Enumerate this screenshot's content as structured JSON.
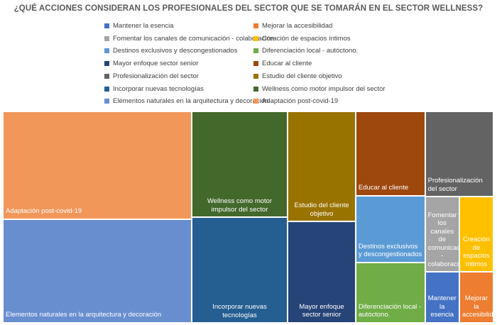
{
  "chart_data": {
    "type": "treemap",
    "title": "¿QUÉ ACCIONES CONSIDERAN LOS PROFESIONALES DEL SECTOR QUE SE TOMARÁN EN EL SECTOR WELLNESS?",
    "legend_position": "top",
    "legend": [
      {
        "name": "Mantener la esencia",
        "color": "#4472c4"
      },
      {
        "name": "Mejorar la accesibilidad",
        "color": "#ed7d31"
      },
      {
        "name": "Fomentar los canales de comunicación - colaboración",
        "color": "#a5a5a5"
      },
      {
        "name": "Creación de espacios íntimos",
        "color": "#ffc000"
      },
      {
        "name": "Destinos exclusivos y descongestionados",
        "color": "#5b9bd5"
      },
      {
        "name": "Diferenciación local - autóctono.",
        "color": "#70ad47"
      },
      {
        "name": "Mayor enfoque sector senior",
        "color": "#264478"
      },
      {
        "name": "Educar al cliente",
        "color": "#9e480e"
      },
      {
        "name": "Profesionalización del sector",
        "color": "#636363"
      },
      {
        "name": "Estudio del cliente objetivo",
        "color": "#997300"
      },
      {
        "name": "Incorporar nuevas tecnologías",
        "color": "#255e91"
      },
      {
        "name": "Wellness como motor impulsor del sector",
        "color": "#43682b"
      },
      {
        "name": "Elementos naturales en la arquitectura y decoración",
        "color": "#698ed0"
      },
      {
        "name": "Adaptación post-covid-19",
        "color": "#f1975a"
      }
    ],
    "items": [
      {
        "label": "Adaptación post-covid-19",
        "value": 19.8,
        "color": "#f1975a"
      },
      {
        "label": "Elementos naturales en la arquitectura y decoración",
        "value": 19.1,
        "color": "#698ed0"
      },
      {
        "label": "Wellness como motor impulsor del sector",
        "value": 9.9,
        "color": "#43682b"
      },
      {
        "label": "Incorporar nuevas tecnologías",
        "value": 9.9,
        "color": "#255e91"
      },
      {
        "label": "Estudio del cliente objetivo",
        "value": 7.3,
        "color": "#997300"
      },
      {
        "label": "Mayor enfoque sector senior",
        "value": 6.7,
        "color": "#264478"
      },
      {
        "label": "Educar al cliente",
        "value": 5.7,
        "color": "#9e480e"
      },
      {
        "label": "Profesionalización del sector",
        "value": 5.7,
        "color": "#636363"
      },
      {
        "label": "Destinos exclusivos y descongestionados",
        "value": 4.5,
        "color": "#5b9bd5"
      },
      {
        "label": "Diferenciación local - autóctono.",
        "value": 4.1,
        "color": "#70ad47"
      },
      {
        "label": "Fomentar los canales de comunicación - colaboración",
        "value": 2.5,
        "color": "#a5a5a5"
      },
      {
        "label": "Creación de espacios íntimos",
        "value": 2.5,
        "color": "#ffc000"
      },
      {
        "label": "Mantener la esencia",
        "value": 1.7,
        "color": "#4472c4"
      },
      {
        "label": "Mejorar la accesibilidad",
        "value": 1.7,
        "color": "#ed7d31"
      }
    ]
  }
}
